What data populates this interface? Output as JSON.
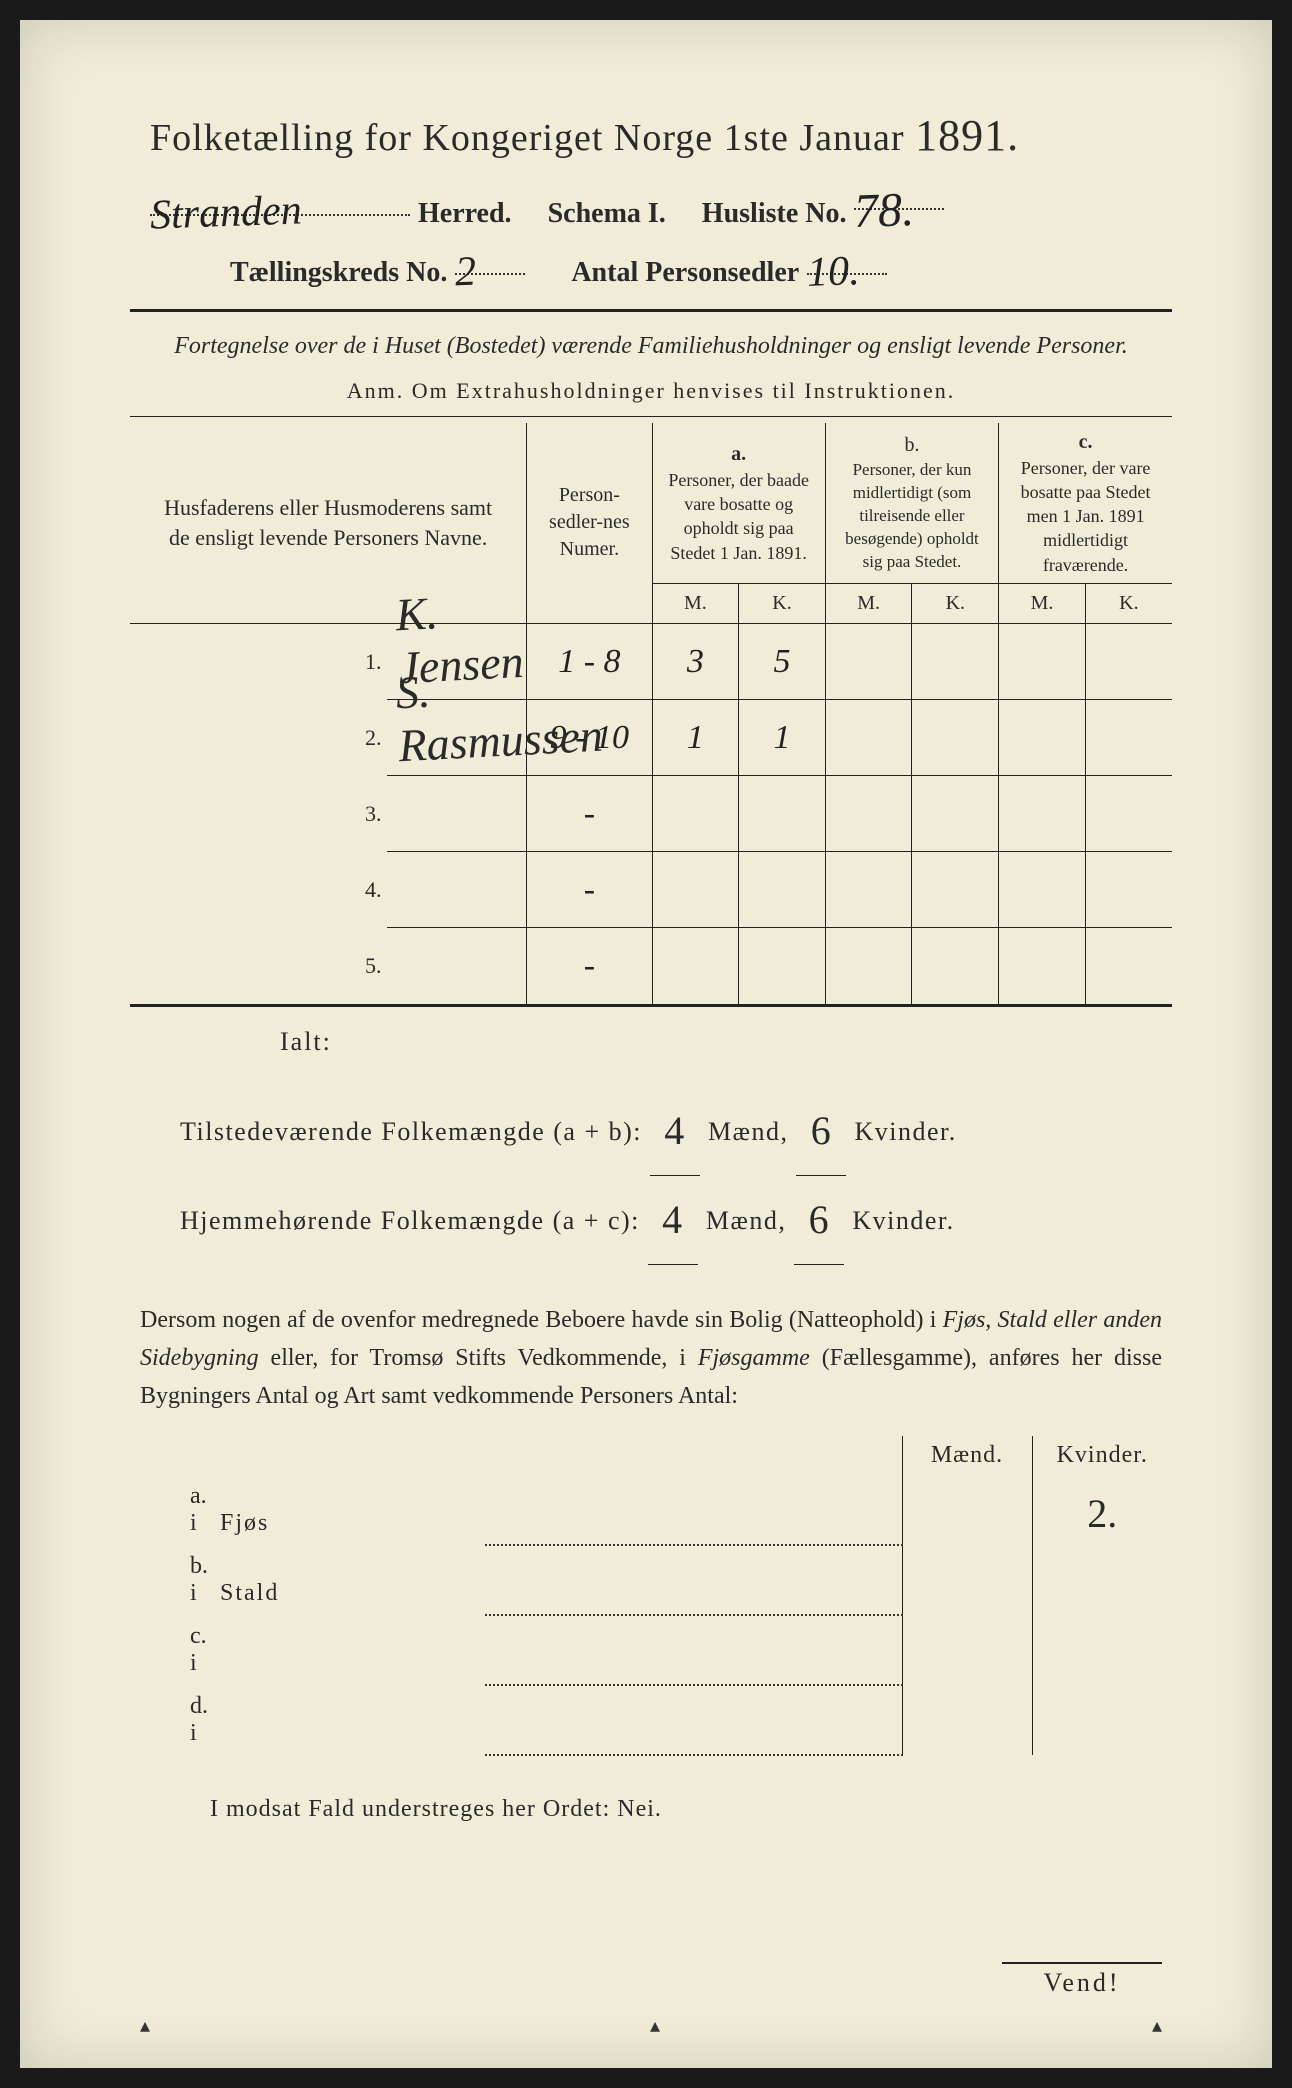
{
  "header": {
    "title_prefix": "Folketælling for Kongeriget Norge 1ste Januar",
    "year": "1891.",
    "herred_hw": "Stranden",
    "herred_label": "Herred.",
    "schema_label": "Schema I.",
    "husliste_label": "Husliste No.",
    "husliste_hw": "78.",
    "kreds_label": "Tællingskreds No.",
    "kreds_hw": "2",
    "antal_label": "Antal Personsedler",
    "antal_hw": "10."
  },
  "subtitle": {
    "line": "Fortegnelse over de i Huset (Bostedet) værende Familiehusholdninger og ensligt levende Personer.",
    "anm": "Anm. Om Extrahusholdninger henvises til Instruktionen."
  },
  "table": {
    "head": {
      "name": "Husfaderens eller Husmoderens samt de ensligt levende Personers Navne.",
      "numer": "Person-sedler-nes Numer.",
      "a_label": "a.",
      "a_text": "Personer, der baade vare bosatte og opholdt sig paa Stedet 1 Jan. 1891.",
      "b_label": "b.",
      "b_text": "Personer, der kun midlertidigt (som tilreisende eller besøgende) opholdt sig paa Stedet.",
      "c_label": "c.",
      "c_text": "Personer, der vare bosatte paa Stedet men 1 Jan. 1891 midlertidigt fraværende.",
      "M": "M.",
      "K": "K."
    },
    "rows": [
      {
        "n": "1.",
        "name": "K. Jensen",
        "numer": "1 - 8",
        "aM": "3",
        "aK": "5",
        "bM": "",
        "bK": "",
        "cM": "",
        "cK": ""
      },
      {
        "n": "2.",
        "name": "S. Rasmussen",
        "numer": "9 - 10",
        "aM": "1",
        "aK": "1",
        "bM": "",
        "bK": "",
        "cM": "",
        "cK": ""
      },
      {
        "n": "3.",
        "name": "",
        "numer": "-",
        "aM": "",
        "aK": "",
        "bM": "",
        "bK": "",
        "cM": "",
        "cK": ""
      },
      {
        "n": "4.",
        "name": "",
        "numer": "-",
        "aM": "",
        "aK": "",
        "bM": "",
        "bK": "",
        "cM": "",
        "cK": ""
      },
      {
        "n": "5.",
        "name": "",
        "numer": "-",
        "aM": "",
        "aK": "",
        "bM": "",
        "bK": "",
        "cM": "",
        "cK": ""
      }
    ]
  },
  "totals": {
    "ialt": "Ialt:",
    "line1_label": "Tilstedeværende Folkemængde (a + b):",
    "line1_m": "4",
    "line1_k": "6",
    "line2_label": "Hjemmehørende Folkemængde (a + c):",
    "line2_m": "4",
    "line2_k": "6",
    "maend": "Mænd,",
    "kvinder": "Kvinder."
  },
  "para": {
    "text_1": "Dersom nogen af de ovenfor medregnede Beboere havde sin Bolig (Natteophold) i ",
    "italic_1": "Fjøs, Stald eller anden Sidebygning",
    "text_2": " eller, for Tromsø Stifts Vedkommende, i ",
    "italic_2": "Fjøsgamme",
    "text_3": " (Fællesgamme), anføres her disse Bygningers Antal og Art samt vedkommende Personers Antal:"
  },
  "bldg": {
    "head_m": "Mænd.",
    "head_k": "Kvinder.",
    "rows": [
      {
        "lbl": "a. i",
        "desc": "Fjøs",
        "m": "",
        "k": "2."
      },
      {
        "lbl": "b. i",
        "desc": "Stald",
        "m": "",
        "k": ""
      },
      {
        "lbl": "c. i",
        "desc": "",
        "m": "",
        "k": ""
      },
      {
        "lbl": "d. i",
        "desc": "",
        "m": "",
        "k": ""
      }
    ]
  },
  "nei": "I modsat Fald understreges her Ordet: Nei.",
  "vend": "Vend!"
}
